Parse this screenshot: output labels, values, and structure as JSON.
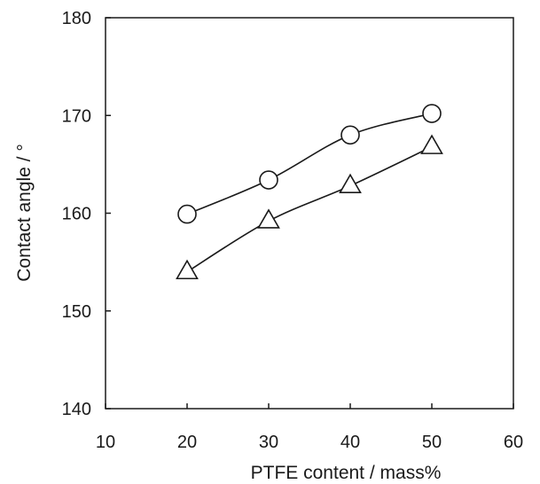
{
  "chart_data": {
    "type": "line",
    "title": "",
    "xlabel": "PTFE content / mass%",
    "ylabel": "Contact angle / °",
    "xlim": [
      10,
      60
    ],
    "ylim": [
      140,
      180
    ],
    "xticks": [
      10,
      20,
      30,
      40,
      50,
      60
    ],
    "yticks": [
      140,
      150,
      160,
      170,
      180
    ],
    "grid": false,
    "legend": "none",
    "series": [
      {
        "marker": "circle",
        "x": [
          20,
          30,
          40,
          50
        ],
        "y": [
          159.9,
          163.4,
          168.0,
          170.2
        ]
      },
      {
        "marker": "triangle",
        "x": [
          20,
          30,
          40,
          50
        ],
        "y": [
          154.0,
          159.2,
          162.8,
          166.8
        ]
      }
    ],
    "colors": {
      "line": "#1a1a1a",
      "marker_fill": "#ffffff"
    }
  }
}
